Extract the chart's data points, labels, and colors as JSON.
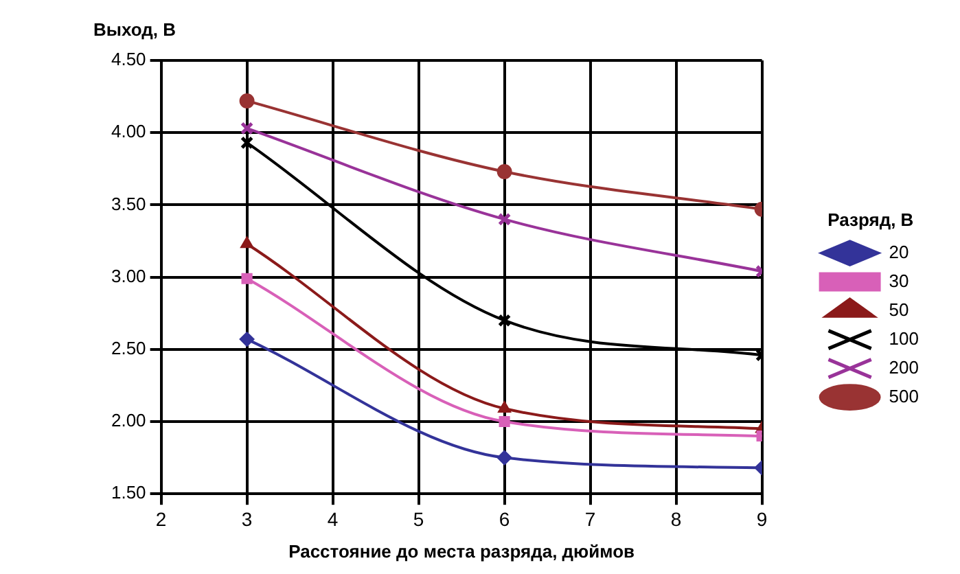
{
  "chart_data": {
    "type": "line",
    "xlabel": "Расстояние до места разряда, дюймов",
    "ylabel": "Выход, В",
    "legend_title": "Разряд, В",
    "legend": "right",
    "grid": true,
    "line_style": "solid",
    "x": [
      3,
      6,
      9
    ],
    "xlim": [
      2,
      9
    ],
    "xticks": [
      2,
      3,
      4,
      5,
      6,
      7,
      8,
      9
    ],
    "ylim": [
      1.5,
      4.5
    ],
    "yticks": [
      {
        "value": 1.5,
        "label": "1.50"
      },
      {
        "value": 2,
        "label": "2.00"
      },
      {
        "value": 2.5,
        "label": "2.50"
      },
      {
        "value": 3,
        "label": "3.00"
      },
      {
        "value": 3.5,
        "label": "3.50"
      },
      {
        "value": 4,
        "label": "4.00"
      },
      {
        "value": 4.5,
        "label": "4.50"
      }
    ],
    "series": [
      {
        "name": "20",
        "color": "#333399",
        "marker": "diamond",
        "values": [
          2.57,
          1.75,
          1.68
        ]
      },
      {
        "name": "30",
        "color": "#d860b8",
        "marker": "square",
        "values": [
          2.99,
          2.0,
          1.9
        ]
      },
      {
        "name": "50",
        "color": "#8b1a1a",
        "marker": "triangle",
        "values": [
          3.23,
          2.09,
          1.95
        ]
      },
      {
        "name": "100",
        "color": "#000000",
        "marker": "cross",
        "values": [
          3.93,
          2.7,
          2.46
        ]
      },
      {
        "name": "200",
        "color": "#993399",
        "marker": "cross",
        "values": [
          4.03,
          3.4,
          3.04
        ]
      },
      {
        "name": "500",
        "color": "#993333",
        "marker": "circle",
        "values": [
          4.22,
          3.73,
          3.47
        ]
      }
    ]
  }
}
